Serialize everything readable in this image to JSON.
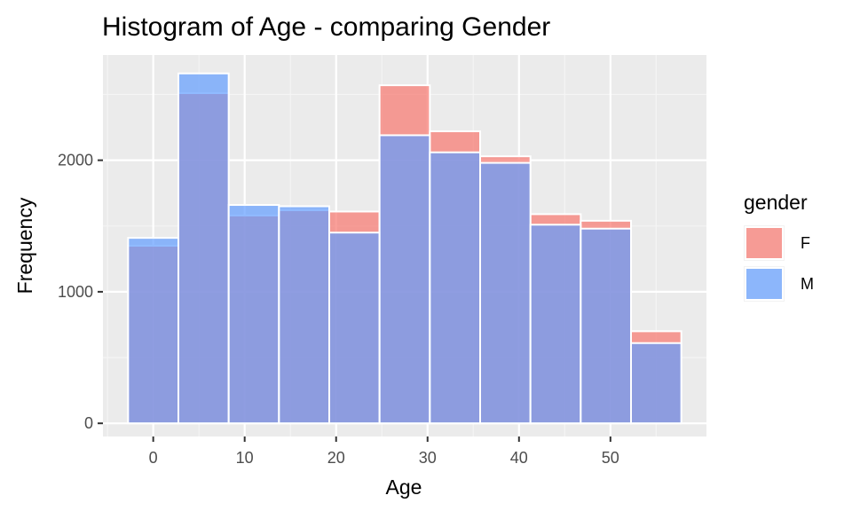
{
  "chart_data": {
    "type": "bar",
    "title": "Histogram of Age - comparing Gender",
    "xlabel": "Age",
    "ylabel": "Frequency",
    "xlim": [
      -5.5,
      60.5
    ],
    "ylim": [
      -100,
      2800
    ],
    "x_ticks": [
      0,
      10,
      20,
      30,
      40,
      50
    ],
    "y_ticks": [
      0,
      1000,
      2000
    ],
    "bin_width": 5.5,
    "bin_centers": [
      0,
      5.5,
      11,
      16.5,
      22,
      27.5,
      33,
      38.5,
      44,
      49.5,
      55
    ],
    "series": [
      {
        "name": "F",
        "color": "#F8766D",
        "values": [
          1350,
          2510,
          1580,
          1620,
          1610,
          2570,
          2220,
          2030,
          1590,
          1540,
          700
        ]
      },
      {
        "name": "M",
        "color": "#619CFF",
        "values": [
          1410,
          2660,
          1660,
          1650,
          1450,
          2190,
          2060,
          1980,
          1510,
          1480,
          610
        ]
      }
    ],
    "grid": true,
    "legend": {
      "title": "gender",
      "placement": "right",
      "entries": [
        "F",
        "M"
      ]
    },
    "panel_background": "#EBEBEB",
    "overlap_alpha": 0.7
  }
}
